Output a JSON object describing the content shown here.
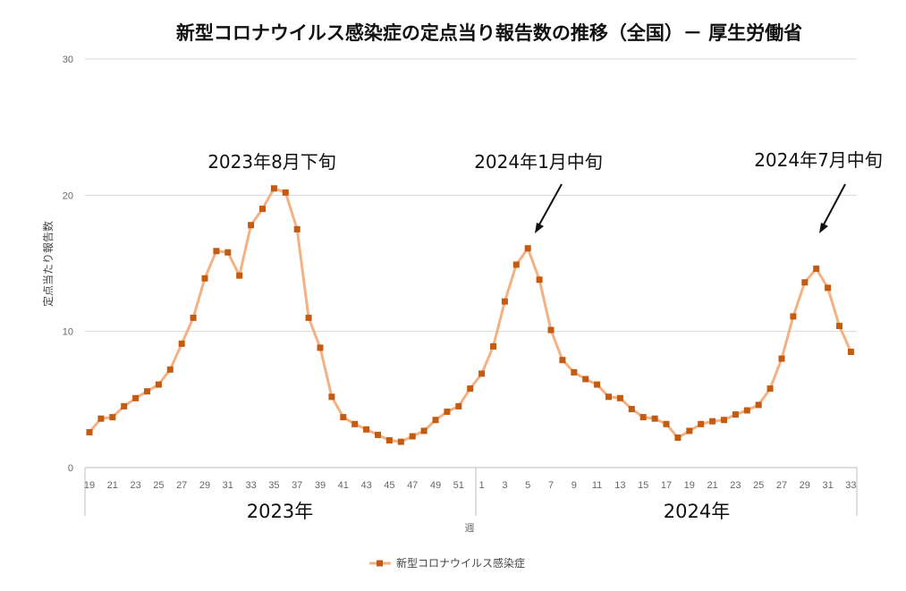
{
  "chart_data": {
    "type": "line",
    "title": "新型コロナウイルス感染症の定点当り報告数の推移（全国）－ 厚生労働省",
    "xlabel": "週",
    "ylabel": "定点当たり報告数",
    "ylim": [
      0,
      30
    ],
    "yticks": [
      0,
      10,
      20,
      30
    ],
    "grid": true,
    "legend_position": "bottom",
    "year_labels": [
      "2023年",
      "2024年"
    ],
    "x_tick_labels": [
      "19",
      "21",
      "23",
      "25",
      "27",
      "29",
      "31",
      "33",
      "35",
      "37",
      "39",
      "41",
      "43",
      "45",
      "47",
      "49",
      "51",
      "1",
      "3",
      "5",
      "7",
      "9",
      "11",
      "13",
      "15",
      "17",
      "19",
      "21",
      "23",
      "25",
      "27",
      "29",
      "31",
      "33"
    ],
    "weeks": [
      "2023-19",
      "2023-20",
      "2023-21",
      "2023-22",
      "2023-23",
      "2023-24",
      "2023-25",
      "2023-26",
      "2023-27",
      "2023-28",
      "2023-29",
      "2023-30",
      "2023-31",
      "2023-32",
      "2023-33",
      "2023-34",
      "2023-35",
      "2023-36",
      "2023-37",
      "2023-38",
      "2023-39",
      "2023-40",
      "2023-41",
      "2023-42",
      "2023-43",
      "2023-44",
      "2023-45",
      "2023-46",
      "2023-47",
      "2023-48",
      "2023-49",
      "2023-50",
      "2023-51",
      "2023-52",
      "2024-1",
      "2024-2",
      "2024-3",
      "2024-4",
      "2024-5",
      "2024-6",
      "2024-7",
      "2024-8",
      "2024-9",
      "2024-10",
      "2024-11",
      "2024-12",
      "2024-13",
      "2024-14",
      "2024-15",
      "2024-16",
      "2024-17",
      "2024-18",
      "2024-19",
      "2024-20",
      "2024-21",
      "2024-22",
      "2024-23",
      "2024-24",
      "2024-25",
      "2024-26",
      "2024-27",
      "2024-28",
      "2024-29",
      "2024-30",
      "2024-31",
      "2024-32",
      "2024-33"
    ],
    "series": [
      {
        "name": "新型コロナウイルス感染症",
        "color": "#c55a11",
        "line_color": "#f4b183",
        "values": [
          2.6,
          3.6,
          3.7,
          4.5,
          5.1,
          5.6,
          6.1,
          7.2,
          9.1,
          11.0,
          13.9,
          15.9,
          15.8,
          14.1,
          17.8,
          19.0,
          20.5,
          20.2,
          17.5,
          11.0,
          8.8,
          5.2,
          3.7,
          3.2,
          2.8,
          2.4,
          2.0,
          1.9,
          2.3,
          2.7,
          3.5,
          4.1,
          4.5,
          5.8,
          6.9,
          8.9,
          12.2,
          14.9,
          16.1,
          13.8,
          10.1,
          7.9,
          7.0,
          6.5,
          6.1,
          5.2,
          5.1,
          4.3,
          3.7,
          3.6,
          3.2,
          2.2,
          2.7,
          3.2,
          3.4,
          3.5,
          3.9,
          4.2,
          4.6,
          5.8,
          8.0,
          11.1,
          13.6,
          14.6,
          13.2,
          10.4,
          8.5
        ]
      }
    ],
    "annotations": [
      {
        "text": "2023年8月下旬",
        "arrow": false
      },
      {
        "text": "2024年1月中旬",
        "arrow": true
      },
      {
        "text": "2024年7月中旬",
        "arrow": true
      }
    ]
  }
}
